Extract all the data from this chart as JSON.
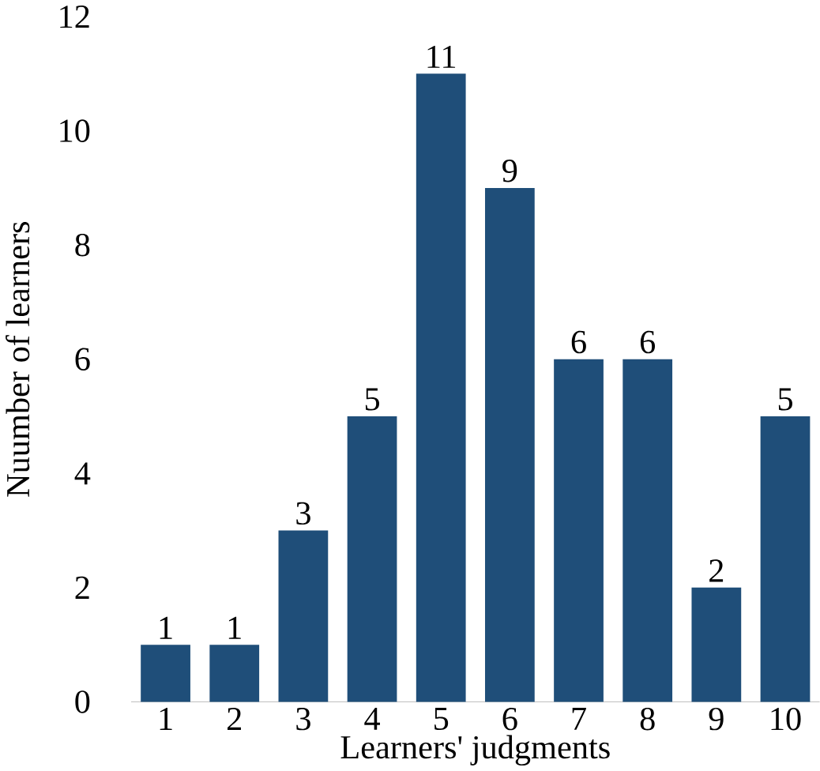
{
  "chart_data": {
    "type": "bar",
    "xlabel": "Learners' judgments",
    "ylabel": "Nuumber of learners",
    "categories": [
      "1",
      "2",
      "3",
      "4",
      "5",
      "6",
      "7",
      "8",
      "9",
      "10"
    ],
    "values": [
      1,
      1,
      3,
      5,
      11,
      9,
      6,
      6,
      2,
      5
    ],
    "color": "#1f4e79",
    "ylim": [
      0,
      12
    ],
    "yticks": [
      0,
      2,
      4,
      6,
      8,
      10,
      12
    ],
    "data_labels": true
  }
}
